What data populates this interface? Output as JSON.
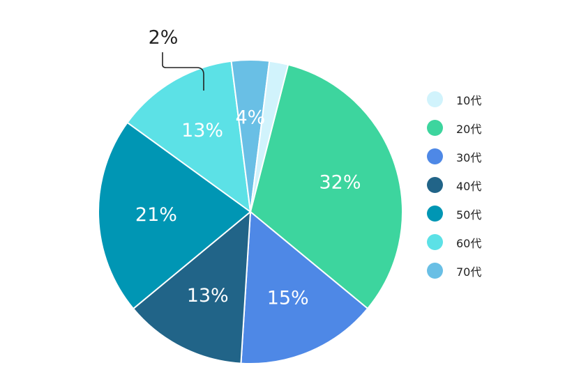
{
  "chart_data": {
    "type": "pie",
    "categories": [
      "10代",
      "20代",
      "30代",
      "40代",
      "50代",
      "60代",
      "70代"
    ],
    "values": [
      2,
      32,
      15,
      13,
      21,
      13,
      4
    ],
    "labels": [
      "2%",
      "32%",
      "15%",
      "13%",
      "21%",
      "13%",
      "4%"
    ],
    "colors": [
      "#d1f3fc",
      "#3dd59e",
      "#4e88e6",
      "#216488",
      "#0096b4",
      "#5ce1e6",
      "#69bfe5"
    ],
    "legend_position": "right",
    "start_slice": "20代",
    "direction": "clockwise"
  }
}
